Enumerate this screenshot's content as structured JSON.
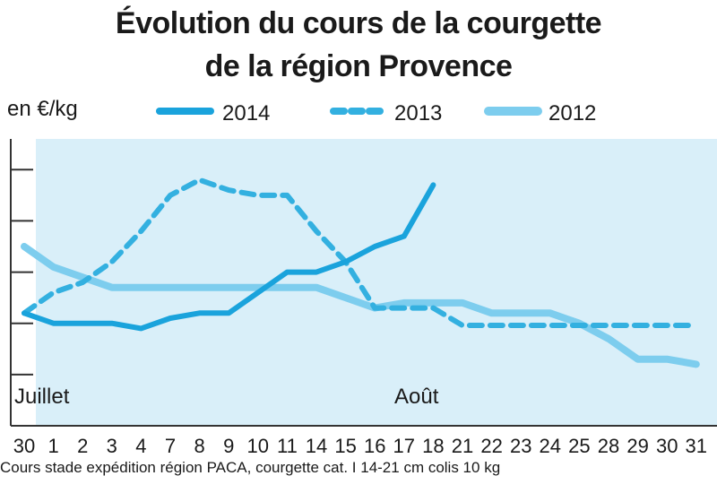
{
  "chart_data": {
    "type": "line",
    "title": "Évolution du cours de la courgette",
    "subtitle": "de la région Provence",
    "ylabel": "en €/kg",
    "categories": [
      "30",
      "1",
      "2",
      "3",
      "4",
      "7",
      "8",
      "9",
      "10",
      "11",
      "14",
      "15",
      "16",
      "17",
      "18",
      "21",
      "22",
      "23",
      "24",
      "25",
      "28",
      "29",
      "30",
      "31"
    ],
    "month_labels": [
      "Juillet",
      "Août"
    ],
    "series": [
      {
        "name": "2014",
        "color": "#1aa3dc",
        "style": "solid",
        "values": [
          1.1,
          1.0,
          1.0,
          1.0,
          0.95,
          1.05,
          1.1,
          1.1,
          1.3,
          1.5,
          1.5,
          1.6,
          1.75,
          1.85,
          2.35,
          null,
          null,
          null,
          null,
          null,
          null,
          null,
          null,
          null
        ]
      },
      {
        "name": "2013",
        "color": "#33b0e0",
        "style": "dashed",
        "values": [
          1.1,
          1.3,
          1.4,
          1.6,
          1.9,
          2.25,
          2.4,
          2.3,
          2.25,
          2.25,
          1.9,
          1.6,
          1.15,
          1.15,
          1.15,
          0.98,
          0.98,
          0.98,
          0.98,
          0.98,
          0.98,
          0.98,
          0.98,
          0.98
        ]
      },
      {
        "name": "2012",
        "color": "#7dcdee",
        "style": "solid",
        "values": [
          1.75,
          1.55,
          1.45,
          1.35,
          1.35,
          1.35,
          1.35,
          1.35,
          1.35,
          1.35,
          1.35,
          1.25,
          1.15,
          1.2,
          1.2,
          1.2,
          1.1,
          1.1,
          1.1,
          1.0,
          0.85,
          0.65,
          0.65,
          0.6
        ]
      }
    ],
    "ylim": [
      0,
      2.8
    ],
    "grid": false,
    "legend": "top"
  },
  "footnote": "Cours stade expédition région PACA, courgette cat. I 14-21 cm colis 10 kg"
}
